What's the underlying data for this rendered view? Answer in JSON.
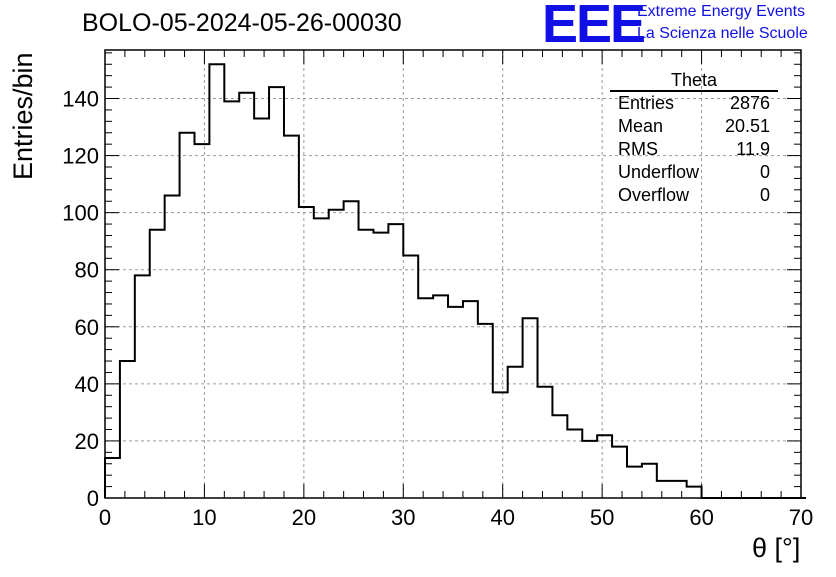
{
  "header": {
    "run_title": "BOLO-05-2024-05-26-00030",
    "logo_text": "EEE",
    "logo_line1": "Extreme Energy Events",
    "logo_line2": "La Scienza nelle Scuole"
  },
  "stats_box": {
    "title": "Theta",
    "rows": [
      {
        "label": "Entries",
        "value": "2876"
      },
      {
        "label": "Mean",
        "value": "20.51"
      },
      {
        "label": "RMS",
        "value": "11.9"
      },
      {
        "label": "Underflow",
        "value": "0"
      },
      {
        "label": "Overflow",
        "value": "0"
      }
    ]
  },
  "colors": {
    "line": "#000000",
    "grid": "#9a9a9a",
    "logo": "#1010e6"
  },
  "chart_data": {
    "type": "bar",
    "histogram": true,
    "xlabel": "θ [°]",
    "ylabel": "Entries/bin",
    "xlim": [
      0,
      70
    ],
    "ylim": [
      0,
      157
    ],
    "grid": true,
    "xticks": [
      0,
      10,
      20,
      30,
      40,
      50,
      60,
      70
    ],
    "yticks": [
      0,
      20,
      40,
      60,
      80,
      100,
      120,
      140
    ],
    "bin_width": 1.5,
    "bin_edges_start": 0,
    "values": [
      14,
      48,
      78,
      94,
      106,
      128,
      124,
      152,
      139,
      142,
      133,
      144,
      127,
      102,
      98,
      101,
      104,
      94,
      93,
      96,
      85,
      70,
      71,
      67,
      69,
      61,
      37,
      46,
      63,
      39,
      29,
      24,
      20,
      22,
      18,
      11,
      12,
      6,
      6,
      4,
      0,
      0,
      0,
      0,
      0,
      0,
      0
    ]
  }
}
